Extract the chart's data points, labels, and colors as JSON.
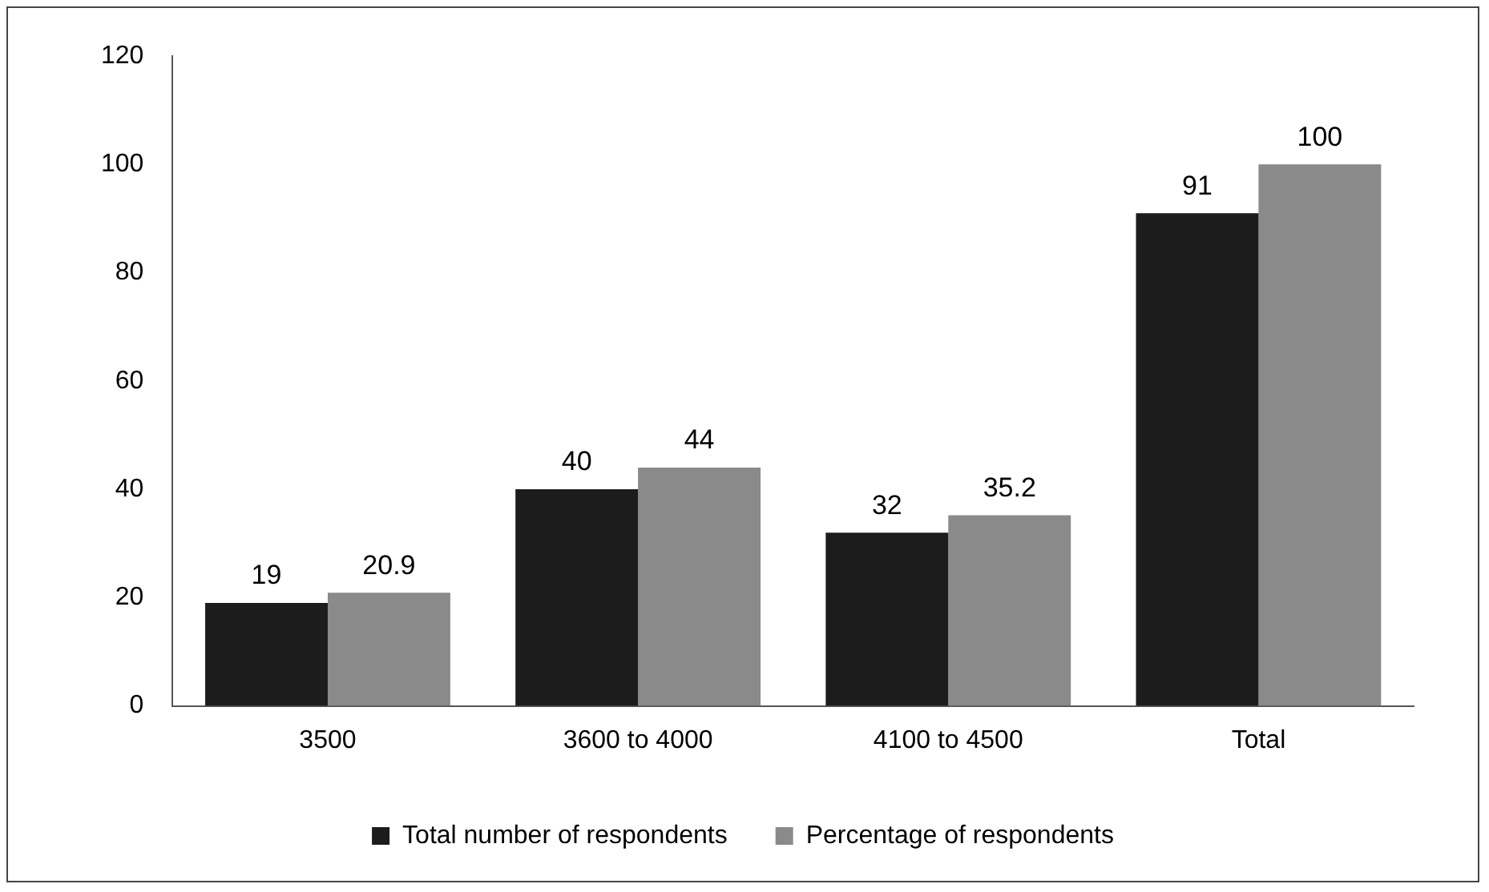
{
  "chart_data": {
    "type": "bar",
    "categories": [
      "3500",
      "3600 to 4000",
      "4100 to 4500",
      "Total"
    ],
    "series": [
      {
        "name": "Total number of respondents",
        "color": "#1c1c1c",
        "values": [
          19,
          40,
          32,
          91
        ]
      },
      {
        "name": "Percentage of respondents",
        "color": "#8a8a8a",
        "values": [
          20.9,
          44,
          35.2,
          100
        ]
      }
    ],
    "ylim": [
      0,
      120
    ],
    "yticks": [
      0,
      20,
      40,
      60,
      80,
      100,
      120
    ],
    "grid": false,
    "legend": "bottom",
    "data_labels": true
  }
}
